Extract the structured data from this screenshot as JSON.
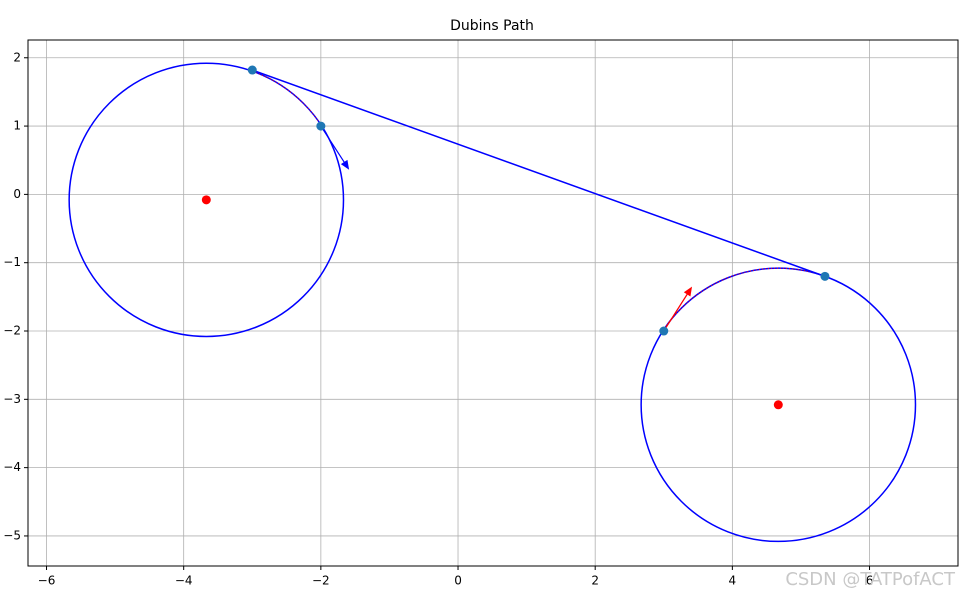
{
  "chart_data": {
    "type": "dubins",
    "title": "Dubins Path",
    "watermark": "CSDN @TATPofACT",
    "xlim": [
      -6.27,
      7.29
    ],
    "ylim": [
      -5.44,
      2.26
    ],
    "grid": true,
    "xticks": [
      {
        "value": -6,
        "label": "−6"
      },
      {
        "value": -4,
        "label": "−4"
      },
      {
        "value": -2,
        "label": "−2"
      },
      0,
      2,
      4,
      6
    ],
    "yticks": [
      {
        "value": -5,
        "label": "−5"
      },
      {
        "value": -4,
        "label": "−4"
      },
      {
        "value": -3,
        "label": "−3"
      },
      {
        "value": -2,
        "label": "−2"
      },
      {
        "value": -1,
        "label": "−1"
      },
      0,
      1,
      2
    ],
    "circles": [
      {
        "center_x": -3.67,
        "center_y": -0.08,
        "radius": 2.0,
        "color": "#0000ff",
        "arc": [
          33,
          70.6
        ],
        "arc_color": "#ff0000"
      },
      {
        "center_x": 4.67,
        "center_y": -3.08,
        "radius": 2.0,
        "color": "#0000ff",
        "arc": [
          147,
          70
        ],
        "arc_color": "#ff0000"
      }
    ],
    "tangent": {
      "x": [
        -3,
        5.35
      ],
      "y": [
        1.82,
        -1.2
      ],
      "color": "#0000ff"
    },
    "points": {
      "x": [
        -3,
        -2,
        5.35,
        3
      ],
      "y": [
        1.82,
        1,
        -1.2,
        -2
      ],
      "color": "#1f77b4"
    },
    "centers": {
      "x": [
        -3.67,
        4.67
      ],
      "y": [
        -0.08,
        -3.08
      ],
      "color": "#ff0000"
    },
    "arrows": [
      {
        "x": -2,
        "y": 1,
        "dx": 0.4,
        "dy": -0.62,
        "color": "#0000ff"
      },
      {
        "x": 3,
        "y": -2,
        "dx": 0.4,
        "dy": 0.63,
        "color": "#ff0000"
      }
    ]
  }
}
